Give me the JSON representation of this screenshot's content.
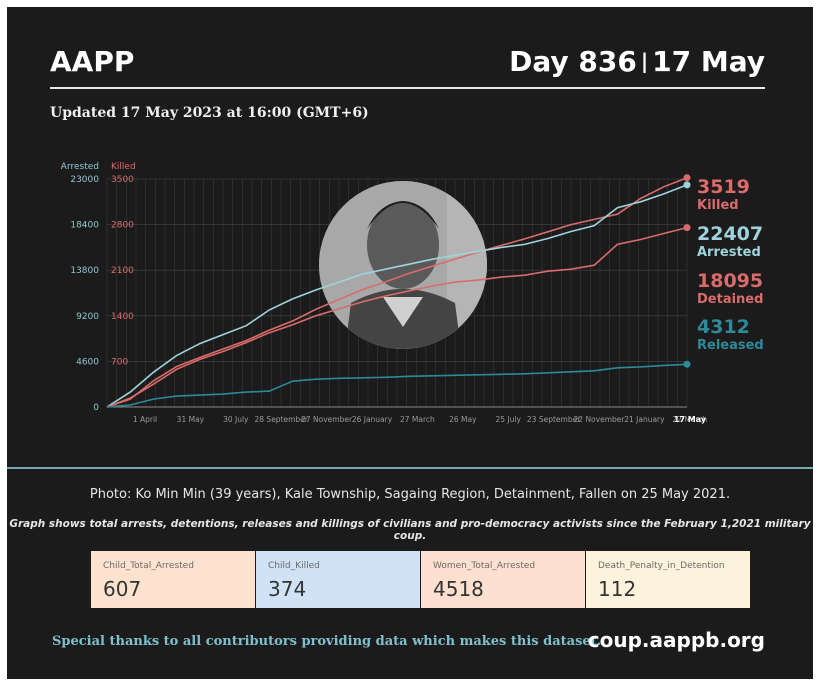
{
  "header": {
    "brand": "AAPP",
    "day": "Day 836",
    "date": "17 May",
    "updated": "Updated 17 May 2023 at 16:00 (GMT+6)"
  },
  "chart_data": {
    "type": "line",
    "y_axis_left_title": "Arrested",
    "y_axis_right_title": "Killed",
    "arrested_ticks": [
      "23000",
      "18400",
      "13800",
      "9200",
      "4600",
      "0"
    ],
    "killed_ticks": [
      "3500",
      "2800",
      "2100",
      "1400",
      "700"
    ],
    "x_tick_labels": [
      "1 April",
      "31 May",
      "30 July",
      "28 September",
      "27 November",
      "26 January",
      "27 March",
      "26 May",
      "25 July",
      "23 September",
      "22 November",
      "21 January",
      "22 March"
    ],
    "x_end_label": "17 May",
    "ylim_arrested": [
      0,
      23000
    ],
    "ylim_killed": [
      0,
      3500
    ],
    "grid": true,
    "colors": {
      "killed": "#d96b6b",
      "arrested": "#9fd3dc",
      "detained": "#d96b6b",
      "released": "#2c8a99"
    },
    "series": [
      {
        "name": "Killed",
        "axis": "killed",
        "latest": 3519,
        "values": [
          0,
          120,
          400,
          620,
          760,
          890,
          1020,
          1180,
          1320,
          1500,
          1650,
          1800,
          1920,
          2050,
          2160,
          2270,
          2380,
          2480,
          2580,
          2690,
          2800,
          2880,
          2960,
          3200,
          3380,
          3519
        ]
      },
      {
        "name": "Arrested",
        "axis": "arrested",
        "latest": 22407,
        "values": [
          0,
          1500,
          3500,
          5200,
          6400,
          7300,
          8200,
          9800,
          10900,
          11800,
          12600,
          13400,
          13900,
          14400,
          14900,
          15300,
          15700,
          16100,
          16400,
          17000,
          17700,
          18300,
          20100,
          20700,
          21500,
          22407
        ]
      },
      {
        "name": "Detained",
        "axis": "arrested",
        "latest": 18095,
        "values": [
          0,
          900,
          2300,
          3800,
          4800,
          5600,
          6500,
          7500,
          8300,
          9200,
          9900,
          10600,
          11200,
          11700,
          12200,
          12600,
          12800,
          13100,
          13300,
          13700,
          13900,
          14300,
          16400,
          16900,
          17500,
          18095
        ]
      },
      {
        "name": "Released",
        "axis": "arrested",
        "latest": 4312,
        "values": [
          0,
          200,
          800,
          1100,
          1200,
          1300,
          1500,
          1600,
          2600,
          2800,
          2900,
          2950,
          3000,
          3100,
          3150,
          3200,
          3250,
          3300,
          3350,
          3450,
          3550,
          3650,
          3950,
          4050,
          4200,
          4312
        ]
      }
    ]
  },
  "photo": {
    "alt": "Ko Min Min portrait"
  },
  "captions": {
    "photo": "Photo: Ko Min Min (39 years), Kale Township, Sagaing Region, Detainment, Fallen on 25 May 2021.",
    "graph": "Graph shows total arrests, detentions, releases and killings of civilians and pro-democracy activists since the February 1,2021 military coup."
  },
  "stats": [
    {
      "label": "Child_Total_Arrested",
      "value": "607",
      "color": "#fde3cf"
    },
    {
      "label": "Child_Killed",
      "value": "374",
      "color": "#cfe2f6"
    },
    {
      "label": "Women_Total_Arrested",
      "value": "4518",
      "color": "#fde0d0"
    },
    {
      "label": "Death_Penalty_in_Detention",
      "value": "112",
      "color": "#fdf3dc"
    }
  ],
  "footer": {
    "thanks": "Special thanks to all contributors providing data which makes this dataset.",
    "site": "coup.aappb.org"
  }
}
